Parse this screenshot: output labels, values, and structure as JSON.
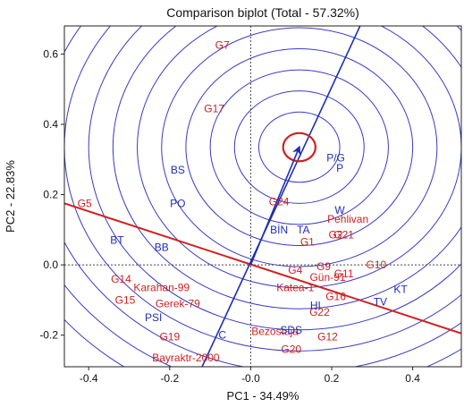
{
  "chart_data": {
    "type": "scatter",
    "title": "Comparison biplot (Total - 57.32%)",
    "xlabel": "PC1 - 34.49%",
    "ylabel": "PC2 - 22.83%",
    "xlim": [
      -0.46,
      0.52
    ],
    "ylim": [
      -0.29,
      0.68
    ],
    "x_ticks": [
      {
        "v": -0.4,
        "label": "-0.4"
      },
      {
        "v": -0.2,
        "label": "-0.2"
      },
      {
        "v": 0.0,
        "label": "-0.0"
      },
      {
        "v": 0.2,
        "label": "0.2"
      },
      {
        "v": 0.4,
        "label": "0.4"
      }
    ],
    "y_ticks": [
      {
        "v": -0.2,
        "label": "-0.2"
      },
      {
        "v": 0.0,
        "label": "0.0"
      },
      {
        "v": 0.2,
        "label": "0.2"
      },
      {
        "v": 0.4,
        "label": "0.4"
      },
      {
        "v": 0.6,
        "label": "0.6"
      }
    ],
    "ideal_point": {
      "x": 0.12,
      "y": 0.335
    },
    "atc_axis": {
      "start": {
        "x": -0.12,
        "y": -0.29
      },
      "end": {
        "x": 0.27,
        "y": 0.68
      }
    },
    "perpendicular_axis": {
      "start": {
        "x": -0.46,
        "y": 0.175
      },
      "end": {
        "x": 0.52,
        "y": -0.195
      }
    },
    "circle_radii": [
      0.04,
      0.1,
      0.16,
      0.22,
      0.28,
      0.34,
      0.4,
      0.46,
      0.52,
      0.58,
      0.64,
      0.7,
      0.76
    ],
    "colors": {
      "genotype": "#d02020",
      "environment": "#1e2fb4",
      "circle": "#3a3ac8",
      "ideal": "#d02020"
    },
    "genotypes": [
      {
        "label": "G7",
        "x": -0.07,
        "y": 0.625
      },
      {
        "label": "G17",
        "x": -0.09,
        "y": 0.445
      },
      {
        "label": "G5",
        "x": -0.41,
        "y": 0.175
      },
      {
        "label": "G24",
        "x": 0.07,
        "y": 0.18
      },
      {
        "label": "Pehlivan",
        "x": 0.24,
        "y": 0.13
      },
      {
        "label": "G2",
        "x": 0.21,
        "y": 0.085
      },
      {
        "label": "G21",
        "x": 0.23,
        "y": 0.085
      },
      {
        "label": "G1",
        "x": 0.14,
        "y": 0.065
      },
      {
        "label": "G4",
        "x": 0.11,
        "y": -0.015
      },
      {
        "label": "G9",
        "x": 0.18,
        "y": -0.005
      },
      {
        "label": "G11",
        "x": 0.23,
        "y": -0.025
      },
      {
        "label": "G10",
        "x": 0.31,
        "y": 0.0
      },
      {
        "label": "Gün-91",
        "x": 0.19,
        "y": -0.035
      },
      {
        "label": "Katea-1",
        "x": 0.11,
        "y": -0.065
      },
      {
        "label": "G14",
        "x": -0.32,
        "y": -0.04
      },
      {
        "label": "Karahan-99",
        "x": -0.22,
        "y": -0.065
      },
      {
        "label": "G15",
        "x": -0.31,
        "y": -0.1
      },
      {
        "label": "Gerek-79",
        "x": -0.18,
        "y": -0.11
      },
      {
        "label": "G16",
        "x": 0.21,
        "y": -0.09
      },
      {
        "label": "G22",
        "x": 0.17,
        "y": -0.135
      },
      {
        "label": "G19",
        "x": -0.2,
        "y": -0.205
      },
      {
        "label": "Bezostaja",
        "x": 0.06,
        "y": -0.19
      },
      {
        "label": "G12",
        "x": 0.19,
        "y": -0.205
      },
      {
        "label": "G20",
        "x": 0.1,
        "y": -0.24
      },
      {
        "label": "Bayraktr-2000",
        "x": -0.16,
        "y": -0.265
      }
    ],
    "environments": [
      {
        "label": "P/G",
        "x": 0.21,
        "y": 0.305
      },
      {
        "label": "P",
        "x": 0.22,
        "y": 0.275
      },
      {
        "label": "BS",
        "x": -0.18,
        "y": 0.27
      },
      {
        "label": "PO",
        "x": -0.18,
        "y": 0.175
      },
      {
        "label": "W",
        "x": 0.22,
        "y": 0.155
      },
      {
        "label": "BİN",
        "x": 0.07,
        "y": 0.1
      },
      {
        "label": "TA",
        "x": 0.13,
        "y": 0.1
      },
      {
        "label": "BT",
        "x": -0.33,
        "y": 0.07
      },
      {
        "label": "BB",
        "x": -0.22,
        "y": 0.05
      },
      {
        "label": "KT",
        "x": 0.37,
        "y": -0.07
      },
      {
        "label": "TV",
        "x": 0.32,
        "y": -0.105
      },
      {
        "label": "HI",
        "x": 0.16,
        "y": -0.115
      },
      {
        "label": "PSI",
        "x": -0.24,
        "y": -0.15
      },
      {
        "label": "SDS",
        "x": 0.1,
        "y": -0.185
      },
      {
        "label": "C",
        "x": -0.07,
        "y": -0.2
      }
    ]
  }
}
